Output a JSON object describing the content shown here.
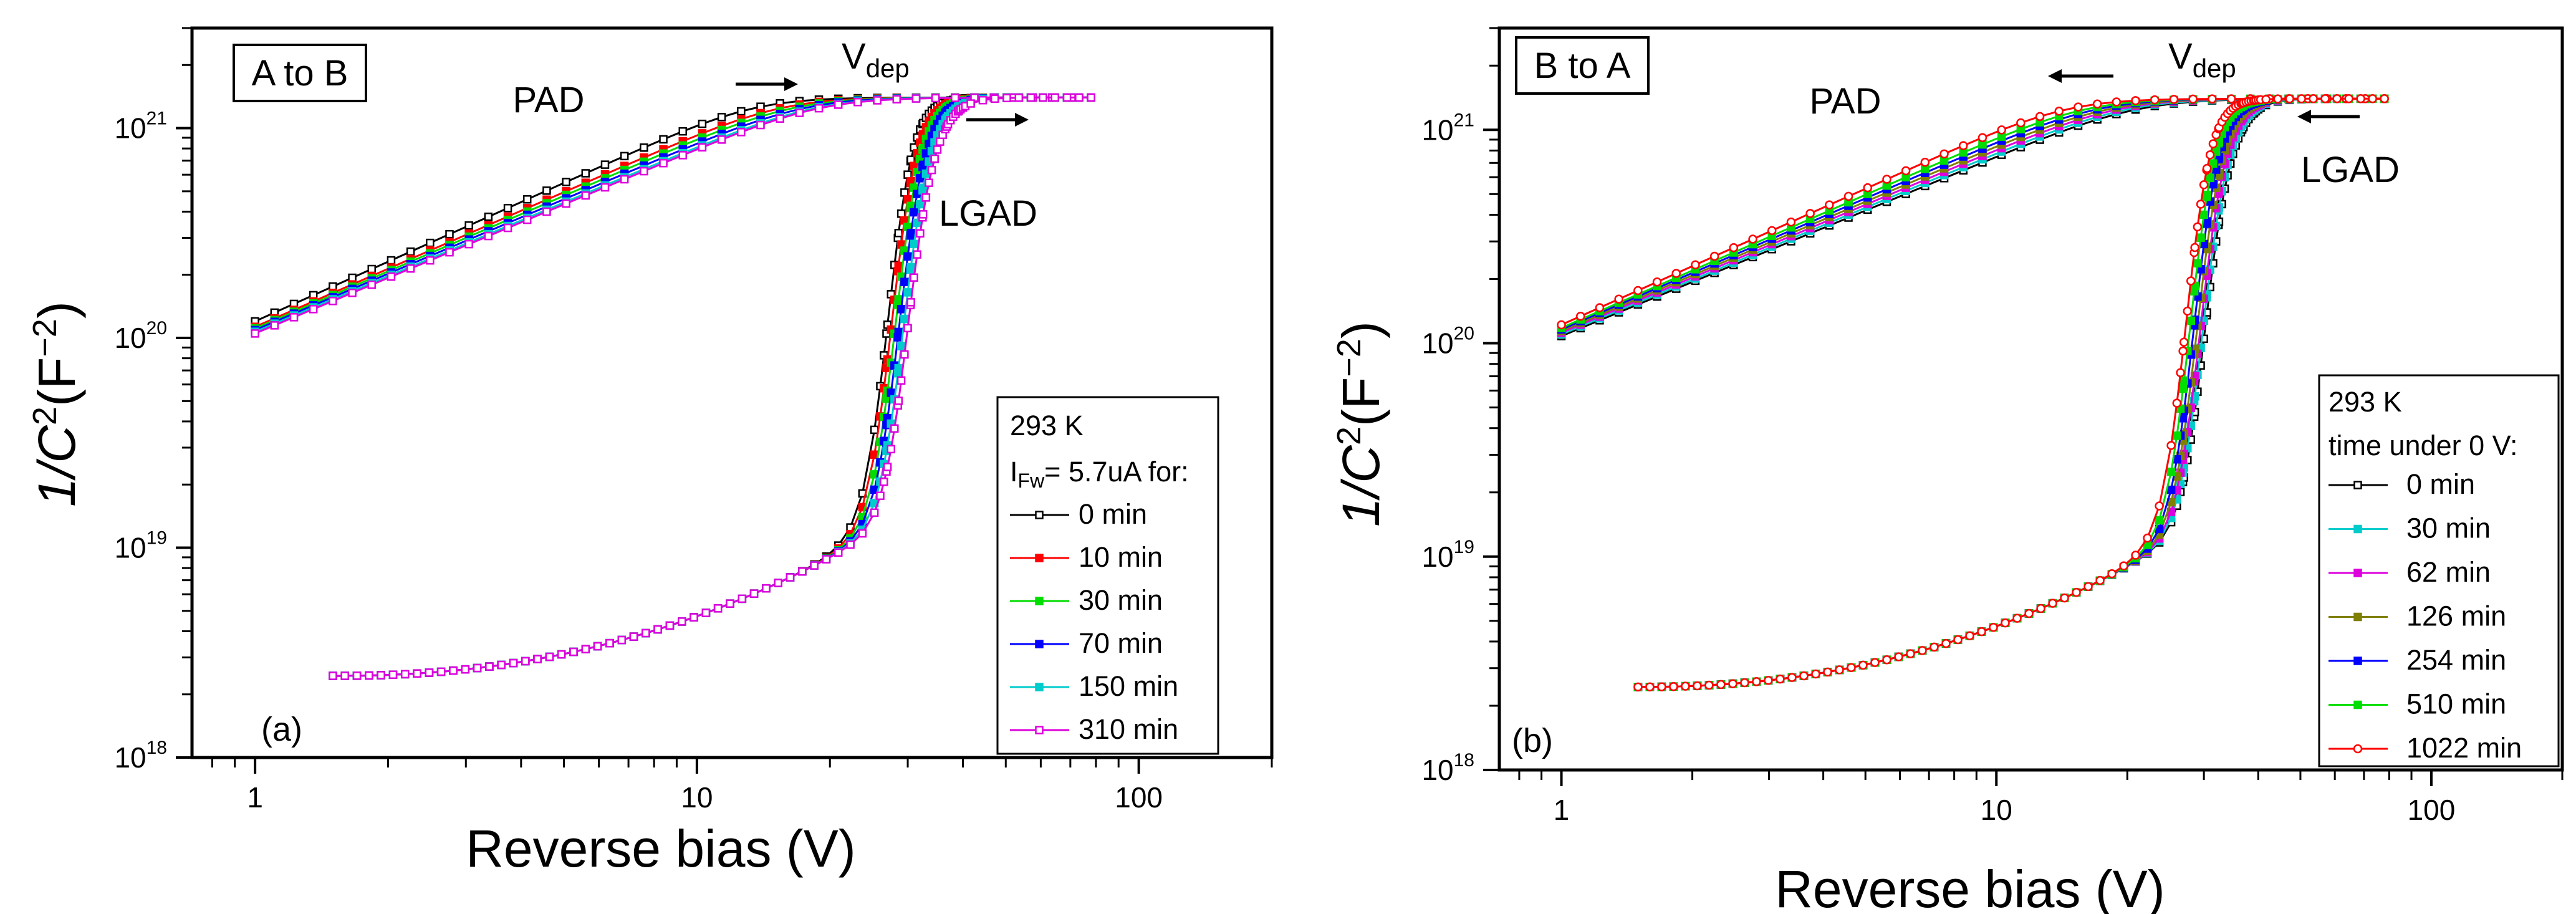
{
  "chart_data": [
    {
      "type": "line",
      "panel": "a",
      "box_label": "A to B",
      "panel_tag": "(a)",
      "xlabel": "Reverse bias (V)",
      "ylabel": "1/C2(F−2)",
      "xscale": "log",
      "yscale": "log",
      "xlim": [
        0.72,
        200
      ],
      "ylim": [
        1e+18,
        3e+21
      ],
      "x_ticks": [
        1,
        10,
        100
      ],
      "x_tick_labels": [
        "1",
        "10",
        "100"
      ],
      "y_ticks": [
        1e+18,
        1e+19,
        1e+20,
        1e+21
      ],
      "y_tick_labels": [
        {
          "base": "10",
          "exp": "18"
        },
        {
          "base": "10",
          "exp": "19"
        },
        {
          "base": "10",
          "exp": "20"
        },
        {
          "base": "10",
          "exp": "21"
        }
      ],
      "annotations": {
        "pad": "PAD",
        "lgad": "LGAD",
        "vdep_main": "V",
        "vdep_sub": "dep",
        "pad_arrow": "right",
        "lgad_arrow": "right"
      },
      "legend": {
        "title_lines": [
          "293 K"
        ],
        "subtitle_main": "I",
        "subtitle_sub": "Fw",
        "subtitle_rest": "= 5.7uA for:",
        "position": "bottom-right"
      },
      "series": [
        {
          "name": "0 min",
          "color": "#000000",
          "marker": "open-square",
          "pad_y1": 1.2e+20,
          "pad_vdep": 13.5,
          "lgad_v": 27.2,
          "lgad_w": 1.0
        },
        {
          "name": "10 min",
          "color": "#ff0000",
          "marker": "filled-square",
          "pad_y1": 1.13e+20,
          "pad_vdep": 15.5,
          "lgad_v": 27.5,
          "lgad_w": 1.04
        },
        {
          "name": "30 min",
          "color": "#00dd00",
          "marker": "filled-square",
          "pad_y1": 1.11e+20,
          "pad_vdep": 16.5,
          "lgad_v": 27.8,
          "lgad_w": 1.08
        },
        {
          "name": "70 min",
          "color": "#0000ff",
          "marker": "filled-square",
          "pad_y1": 1.09e+20,
          "pad_vdep": 17.5,
          "lgad_v": 28.1,
          "lgad_w": 1.12
        },
        {
          "name": "150 min",
          "color": "#00cccc",
          "marker": "filled-square",
          "pad_y1": 1.07e+20,
          "pad_vdep": 18.5,
          "lgad_v": 28.5,
          "lgad_w": 1.16
        },
        {
          "name": "310 min",
          "color": "#dd00dd",
          "marker": "open-square",
          "pad_y1": 1.05e+20,
          "pad_vdep": 19.0,
          "lgad_v": 28.9,
          "lgad_w": 1.2
        }
      ],
      "pad_x_range": [
        1,
        78
      ],
      "lgad_x_range": [
        1.5,
        78
      ],
      "lgad_y_start": 2.45e+18,
      "lgad_y_kink": 1.25e+19,
      "plateau": 1.4e+21
    },
    {
      "type": "line",
      "panel": "b",
      "box_label": "B to A",
      "panel_tag": "(b)",
      "xlabel": "Reverse bias (V)",
      "ylabel": "1/C2(F−2)",
      "xscale": "log",
      "yscale": "log",
      "xlim": [
        0.72,
        200
      ],
      "ylim": [
        1e+18,
        3e+21
      ],
      "x_ticks": [
        1,
        10,
        100
      ],
      "x_tick_labels": [
        "1",
        "10",
        "100"
      ],
      "y_ticks": [
        1e+18,
        1e+19,
        1e+20,
        1e+21
      ],
      "y_tick_labels": [
        {
          "base": "10",
          "exp": "18"
        },
        {
          "base": "10",
          "exp": "19"
        },
        {
          "base": "10",
          "exp": "20"
        },
        {
          "base": "10",
          "exp": "21"
        }
      ],
      "annotations": {
        "pad": "PAD",
        "lgad": "LGAD",
        "vdep_main": "V",
        "vdep_sub": "dep",
        "pad_arrow": "left",
        "lgad_arrow": "left"
      },
      "legend": {
        "title_lines": [
          "293 K",
          "time under 0 V:"
        ],
        "position": "bottom-right"
      },
      "series": [
        {
          "name": "0 min",
          "color": "#000000",
          "marker": "open-square",
          "pad_y1": 1.08e+20,
          "pad_vdep": 21.0,
          "lgad_v": 29.0,
          "lgad_w": 1.2
        },
        {
          "name": "30 min",
          "color": "#00cccc",
          "marker": "filled-square",
          "pad_y1": 1.1e+20,
          "pad_vdep": 20.0,
          "lgad_v": 28.8,
          "lgad_w": 1.18
        },
        {
          "name": "62 min",
          "color": "#dd00dd",
          "marker": "filled-square",
          "pad_y1": 1.12e+20,
          "pad_vdep": 19.0,
          "lgad_v": 28.6,
          "lgad_w": 1.15
        },
        {
          "name": "126 min",
          "color": "#808000",
          "marker": "filled-square",
          "pad_y1": 1.14e+20,
          "pad_vdep": 18.0,
          "lgad_v": 28.3,
          "lgad_w": 1.12
        },
        {
          "name": "254 min",
          "color": "#0000ff",
          "marker": "filled-square",
          "pad_y1": 1.16e+20,
          "pad_vdep": 17.0,
          "lgad_v": 28.0,
          "lgad_w": 1.09
        },
        {
          "name": "510 min",
          "color": "#00dd00",
          "marker": "filled-square",
          "pad_y1": 1.18e+20,
          "pad_vdep": 16.0,
          "lgad_v": 27.7,
          "lgad_w": 1.05
        },
        {
          "name": "1022 min",
          "color": "#ff0000",
          "marker": "open-circle",
          "pad_y1": 1.22e+20,
          "pad_vdep": 14.5,
          "lgad_v": 27.4,
          "lgad_w": 1.0
        }
      ],
      "pad_x_range": [
        1,
        78
      ],
      "lgad_x_range": [
        1.5,
        78
      ],
      "lgad_y_start": 2.45e+18,
      "lgad_y_kink": 1.25e+19,
      "plateau": 1.4e+21
    }
  ]
}
